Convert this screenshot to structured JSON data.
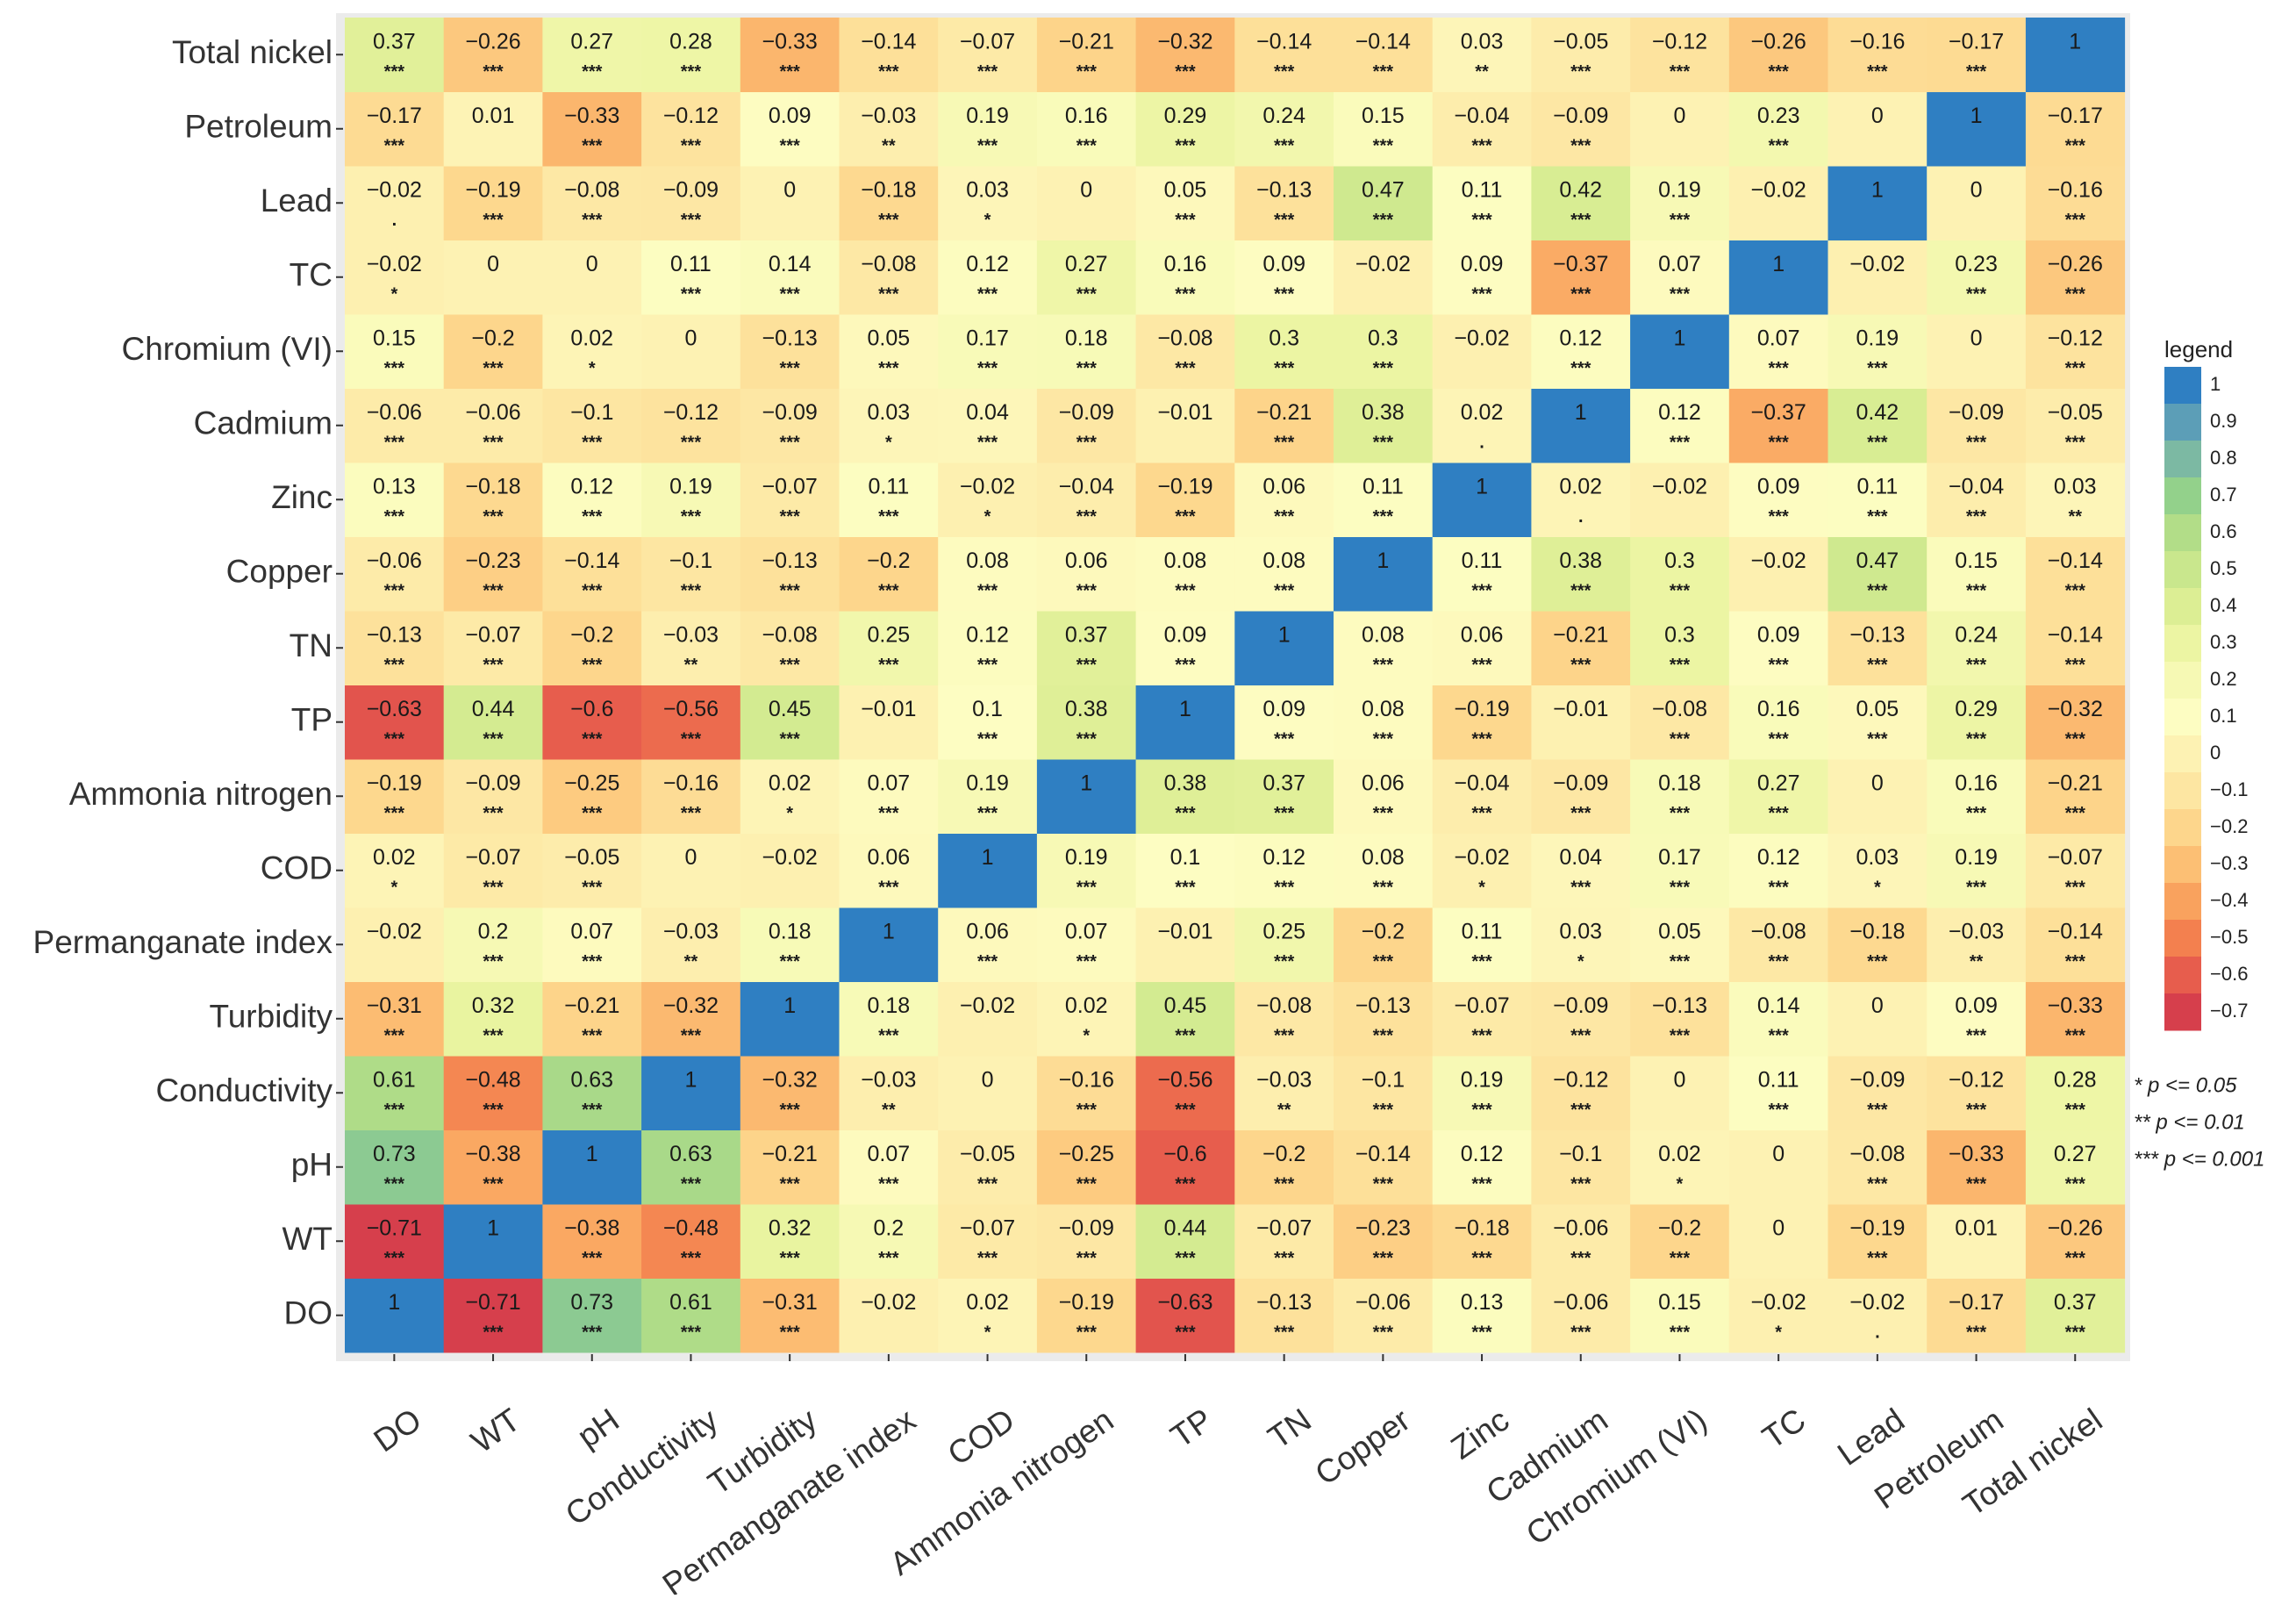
{
  "chart_data": {
    "type": "heatmap",
    "title": "",
    "xlabel": "",
    "ylabel": "",
    "variables": [
      "DO",
      "WT",
      "pH",
      "Conductivity",
      "Turbidity",
      "Permanganate index",
      "COD",
      "Ammonia nitrogen",
      "TP",
      "TN",
      "Copper",
      "Zinc",
      "Cadmium",
      "Chromium (VI)",
      "TC",
      "Lead",
      "Petroleum",
      "Total nickel"
    ],
    "matrix": [
      [
        1,
        -0.71,
        0.73,
        0.61,
        -0.31,
        -0.02,
        0.02,
        -0.19,
        -0.63,
        -0.13,
        -0.06,
        0.13,
        -0.06,
        0.15,
        -0.02,
        -0.02,
        -0.17,
        0.37
      ],
      [
        -0.71,
        1,
        -0.38,
        -0.48,
        0.32,
        0.2,
        -0.07,
        -0.09,
        0.44,
        -0.07,
        -0.23,
        -0.18,
        -0.06,
        -0.2,
        0,
        -0.19,
        0.01,
        -0.26
      ],
      [
        0.73,
        -0.38,
        1,
        0.63,
        -0.21,
        0.07,
        -0.05,
        -0.25,
        -0.6,
        -0.2,
        -0.14,
        0.12,
        -0.1,
        0.02,
        0,
        -0.08,
        -0.33,
        0.27
      ],
      [
        0.61,
        -0.48,
        0.63,
        1,
        -0.32,
        -0.03,
        0,
        -0.16,
        -0.56,
        -0.03,
        -0.1,
        0.19,
        -0.12,
        0,
        0.11,
        -0.09,
        -0.12,
        0.28
      ],
      [
        -0.31,
        0.32,
        -0.21,
        -0.32,
        1,
        0.18,
        -0.02,
        0.02,
        0.45,
        -0.08,
        -0.13,
        -0.07,
        -0.09,
        -0.13,
        0.14,
        0,
        0.09,
        -0.33
      ],
      [
        -0.02,
        0.2,
        0.07,
        -0.03,
        0.18,
        1,
        0.06,
        0.07,
        -0.01,
        0.25,
        -0.2,
        0.11,
        0.03,
        0.05,
        -0.08,
        -0.18,
        -0.03,
        -0.14
      ],
      [
        0.02,
        -0.07,
        -0.05,
        0,
        -0.02,
        0.06,
        1,
        0.19,
        0.1,
        0.12,
        0.08,
        -0.02,
        0.04,
        0.17,
        0.12,
        0.03,
        0.19,
        -0.07
      ],
      [
        -0.19,
        -0.09,
        -0.25,
        -0.16,
        0.02,
        0.07,
        0.19,
        1,
        0.38,
        0.37,
        0.06,
        -0.04,
        -0.09,
        0.18,
        0.27,
        0,
        0.16,
        -0.21
      ],
      [
        -0.63,
        0.44,
        -0.6,
        -0.56,
        0.45,
        -0.01,
        0.1,
        0.38,
        1,
        0.09,
        0.08,
        -0.19,
        -0.01,
        -0.08,
        0.16,
        0.05,
        0.29,
        -0.32
      ],
      [
        -0.13,
        -0.07,
        -0.2,
        -0.03,
        -0.08,
        0.25,
        0.12,
        0.37,
        0.09,
        1,
        0.08,
        0.06,
        -0.21,
        0.3,
        0.09,
        -0.13,
        0.24,
        -0.14
      ],
      [
        -0.06,
        -0.23,
        -0.14,
        -0.1,
        -0.13,
        -0.2,
        0.08,
        0.06,
        0.08,
        0.08,
        1,
        0.11,
        0.38,
        0.3,
        -0.02,
        0.47,
        0.15,
        -0.14
      ],
      [
        0.13,
        -0.18,
        0.12,
        0.19,
        -0.07,
        0.11,
        -0.02,
        -0.04,
        -0.19,
        0.06,
        0.11,
        1,
        0.02,
        -0.02,
        0.09,
        0.11,
        -0.04,
        0.03
      ],
      [
        -0.06,
        -0.06,
        -0.1,
        -0.12,
        -0.09,
        0.03,
        0.04,
        -0.09,
        -0.01,
        -0.21,
        0.38,
        0.02,
        1,
        0.12,
        -0.37,
        0.42,
        -0.09,
        -0.05
      ],
      [
        0.15,
        -0.2,
        0.02,
        0,
        -0.13,
        0.05,
        0.17,
        0.18,
        -0.08,
        0.3,
        0.3,
        -0.02,
        0.12,
        1,
        0.07,
        0.19,
        0,
        -0.12
      ],
      [
        -0.02,
        0,
        0,
        0.11,
        0.14,
        -0.08,
        0.12,
        0.27,
        0.16,
        0.09,
        -0.02,
        0.09,
        -0.37,
        0.07,
        1,
        -0.02,
        0.23,
        -0.26
      ],
      [
        -0.02,
        -0.19,
        -0.08,
        -0.09,
        0,
        -0.18,
        0.03,
        0,
        0.05,
        -0.13,
        0.47,
        0.11,
        0.42,
        0.19,
        -0.02,
        1,
        0,
        -0.16
      ],
      [
        -0.17,
        0.01,
        -0.33,
        -0.12,
        0.09,
        -0.03,
        0.19,
        0.16,
        0.29,
        0.24,
        0.15,
        -0.04,
        -0.09,
        0,
        0.23,
        0,
        1,
        -0.17
      ],
      [
        0.37,
        -0.26,
        0.27,
        0.28,
        -0.33,
        -0.14,
        -0.07,
        -0.21,
        -0.32,
        -0.14,
        -0.14,
        0.03,
        -0.05,
        -0.12,
        -0.26,
        -0.16,
        -0.17,
        1
      ]
    ],
    "significance": [
      [
        "",
        "***",
        "***",
        "***",
        "***",
        "",
        "*",
        "***",
        "***",
        "***",
        "***",
        "***",
        "***",
        "***",
        "*",
        ".",
        "***",
        "***"
      ],
      [
        "***",
        "",
        "***",
        "***",
        "***",
        "***",
        "***",
        "***",
        "***",
        "***",
        "***",
        "***",
        "***",
        "***",
        "",
        "***",
        "",
        "***"
      ],
      [
        "***",
        "***",
        "",
        "***",
        "***",
        "***",
        "***",
        "***",
        "***",
        "***",
        "***",
        "***",
        "***",
        "*",
        "",
        "***",
        "***",
        "***"
      ],
      [
        "***",
        "***",
        "***",
        "",
        "***",
        "**",
        "",
        "***",
        "***",
        "**",
        "***",
        "***",
        "***",
        "",
        "***",
        "***",
        "***",
        "***"
      ],
      [
        "***",
        "***",
        "***",
        "***",
        "",
        "***",
        "",
        "*",
        "***",
        "***",
        "***",
        "***",
        "***",
        "***",
        "***",
        "",
        "***",
        "***"
      ],
      [
        "",
        "***",
        "***",
        "**",
        "***",
        "",
        "***",
        "***",
        "",
        "***",
        "***",
        "***",
        "*",
        "***",
        "***",
        "***",
        "**",
        "***"
      ],
      [
        "*",
        "***",
        "***",
        "",
        "",
        "***",
        "",
        "***",
        "***",
        "***",
        "***",
        "*",
        "***",
        "***",
        "***",
        "*",
        "***",
        "***"
      ],
      [
        "***",
        "***",
        "***",
        "***",
        "*",
        "***",
        "***",
        "",
        "***",
        "***",
        "***",
        "***",
        "***",
        "***",
        "***",
        "",
        "***",
        "***"
      ],
      [
        "***",
        "***",
        "***",
        "***",
        "***",
        "",
        "***",
        "***",
        "",
        "***",
        "***",
        "***",
        "",
        "***",
        "***",
        "***",
        "***",
        "***"
      ],
      [
        "***",
        "***",
        "***",
        "**",
        "***",
        "***",
        "***",
        "***",
        "***",
        "",
        "***",
        "***",
        "***",
        "***",
        "***",
        "***",
        "***",
        "***"
      ],
      [
        "***",
        "***",
        "***",
        "***",
        "***",
        "***",
        "***",
        "***",
        "***",
        "***",
        "",
        "***",
        "***",
        "***",
        "",
        "***",
        "***",
        "***"
      ],
      [
        "***",
        "***",
        "***",
        "***",
        "***",
        "***",
        "*",
        "***",
        "***",
        "***",
        "***",
        "",
        ".",
        "",
        "***",
        "***",
        "***",
        "**"
      ],
      [
        "***",
        "***",
        "***",
        "***",
        "***",
        "*",
        "***",
        "***",
        "",
        "***",
        "***",
        ".",
        "",
        "***",
        "***",
        "***",
        "***",
        "***"
      ],
      [
        "***",
        "***",
        "*",
        "",
        "***",
        "***",
        "***",
        "***",
        "***",
        "***",
        "***",
        "",
        "***",
        "",
        "***",
        "***",
        "",
        "***"
      ],
      [
        "*",
        "",
        "",
        "***",
        "***",
        "***",
        "***",
        "***",
        "***",
        "***",
        "",
        "***",
        "***",
        "***",
        "",
        "",
        "***",
        "***"
      ],
      [
        ".",
        "***",
        "***",
        "***",
        "",
        "***",
        "*",
        "",
        "***",
        "***",
        "***",
        "***",
        "***",
        "***",
        "",
        "",
        "",
        "***"
      ],
      [
        "***",
        "",
        "***",
        "***",
        "***",
        "**",
        "***",
        "***",
        "***",
        "***",
        "***",
        "***",
        "***",
        "",
        "***",
        "",
        "",
        "***"
      ],
      [
        "***",
        "***",
        "***",
        "***",
        "***",
        "***",
        "***",
        "***",
        "***",
        "***",
        "***",
        "**",
        "***",
        "***",
        "***",
        "***",
        "***",
        ""
      ]
    ],
    "color_range": [
      -0.7,
      1
    ],
    "legend": {
      "title": "legend",
      "ticks": [
        1,
        0.9,
        0.8,
        0.7,
        0.6,
        0.5,
        0.4,
        0.3,
        0.2,
        0.1,
        0,
        -0.1,
        -0.2,
        -0.3,
        -0.4,
        -0.5,
        -0.6,
        -0.7
      ],
      "colors": [
        "#2f7fc2",
        "#5c9eb7",
        "#7cb9a3",
        "#93d18b",
        "#b2dd88",
        "#c9e78d",
        "#dcee94",
        "#ecf5a3",
        "#f6f9b4",
        "#fdfdc2",
        "#fdf2b3",
        "#fde6a2",
        "#fdd68c",
        "#fcbf74",
        "#f9a25e",
        "#f3804f",
        "#e75d4d",
        "#d63f4c"
      ],
      "position": "right"
    },
    "significance_key": [
      "* p <= 0.05",
      "** p <= 0.01",
      "*** p <= 0.001"
    ]
  }
}
